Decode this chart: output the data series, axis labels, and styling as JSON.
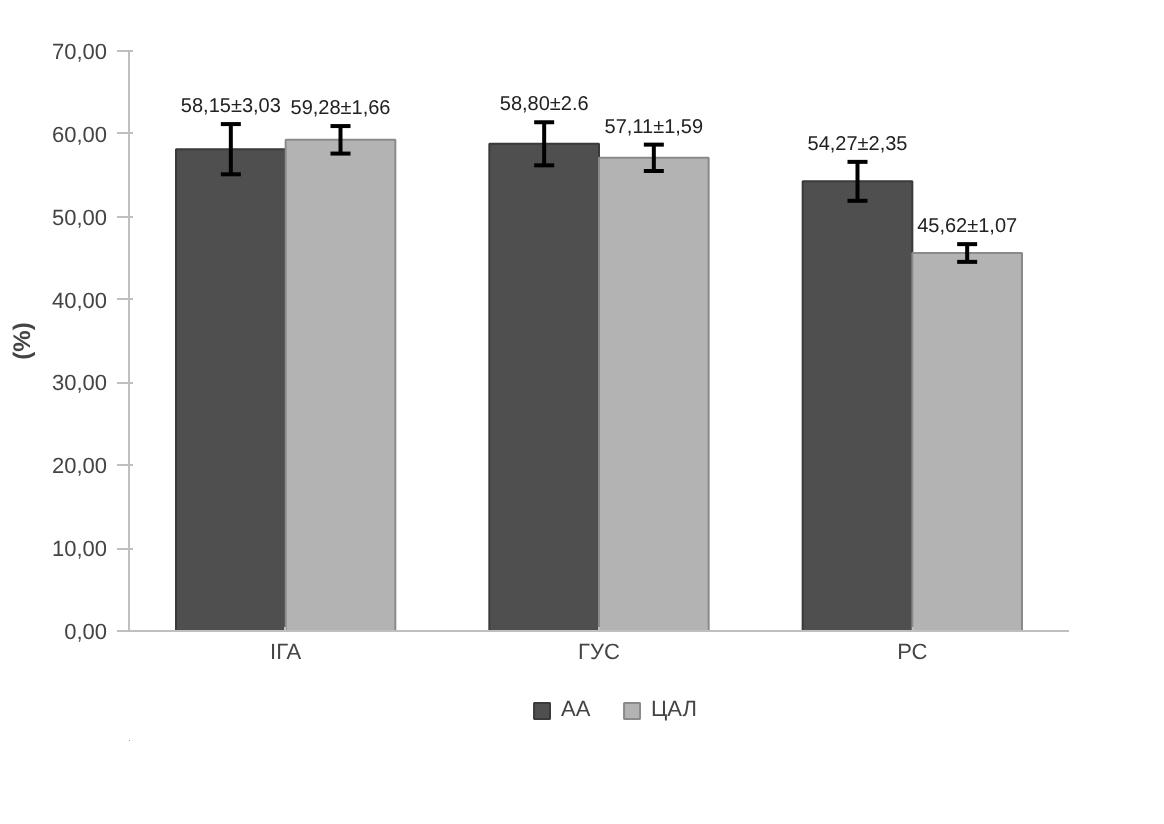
{
  "chart_data": {
    "type": "bar",
    "ylabel": "(%)",
    "categories": [
      "ІГА",
      "ГУС",
      "РС"
    ],
    "series": [
      {
        "name": "АА",
        "color": "#4f4f4f",
        "values": [
          58.15,
          58.8,
          54.27
        ],
        "errors": [
          3.03,
          2.6,
          2.35
        ],
        "value_labels": [
          "58,15±3,03",
          "58,80±2.6",
          "54,27±2,35"
        ]
      },
      {
        "name": "ЦАЛ",
        "color": "#b3b3b3",
        "values": [
          59.28,
          57.11,
          45.62
        ],
        "errors": [
          1.66,
          1.59,
          1.07
        ],
        "value_labels": [
          "59,28±1,66",
          "57,11±1,59",
          "45,62±1,07"
        ]
      }
    ],
    "ylim": [
      0,
      70
    ],
    "yticks": [
      {
        "value": 0,
        "label": "0,00"
      },
      {
        "value": 10,
        "label": "10,00"
      },
      {
        "value": 20,
        "label": "20,00"
      },
      {
        "value": 30,
        "label": "30,00"
      },
      {
        "value": 40,
        "label": "40,00"
      },
      {
        "value": 50,
        "label": "50,00"
      },
      {
        "value": 60,
        "label": "60,00"
      },
      {
        "value": 70,
        "label": "70,00"
      }
    ],
    "grid": false,
    "legend": "bottom"
  }
}
